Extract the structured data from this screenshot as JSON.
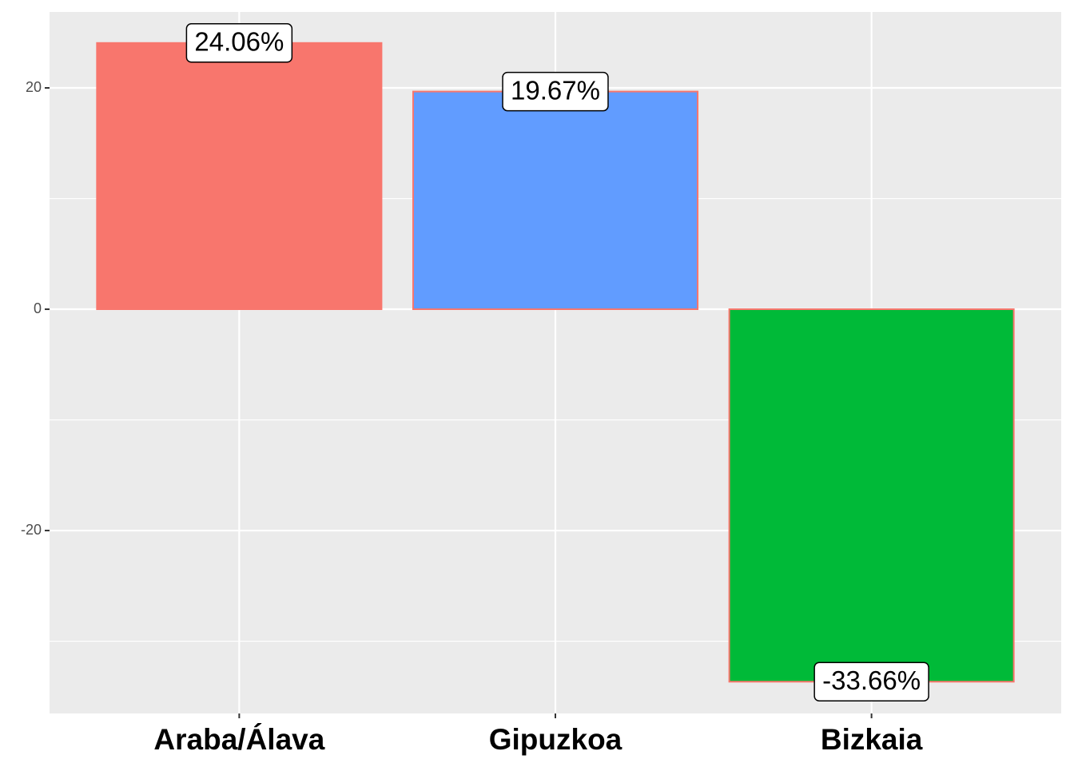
{
  "chart_data": {
    "type": "bar",
    "categories": [
      "Araba/Álava",
      "Gipuzkoa",
      "Bizkaia"
    ],
    "values": [
      24.06,
      19.67,
      -33.66
    ],
    "value_labels": [
      "24.06%",
      "19.67%",
      "-33.66%"
    ],
    "colors": [
      "#F8766D",
      "#619CFF",
      "#00BA38"
    ],
    "outline_color": "#F8766D",
    "ylim": [
      -36.53,
      26.86
    ],
    "yticks": [
      -20,
      0,
      20
    ],
    "minor_yticks": [
      -30,
      -10,
      10
    ],
    "grid": true
  }
}
